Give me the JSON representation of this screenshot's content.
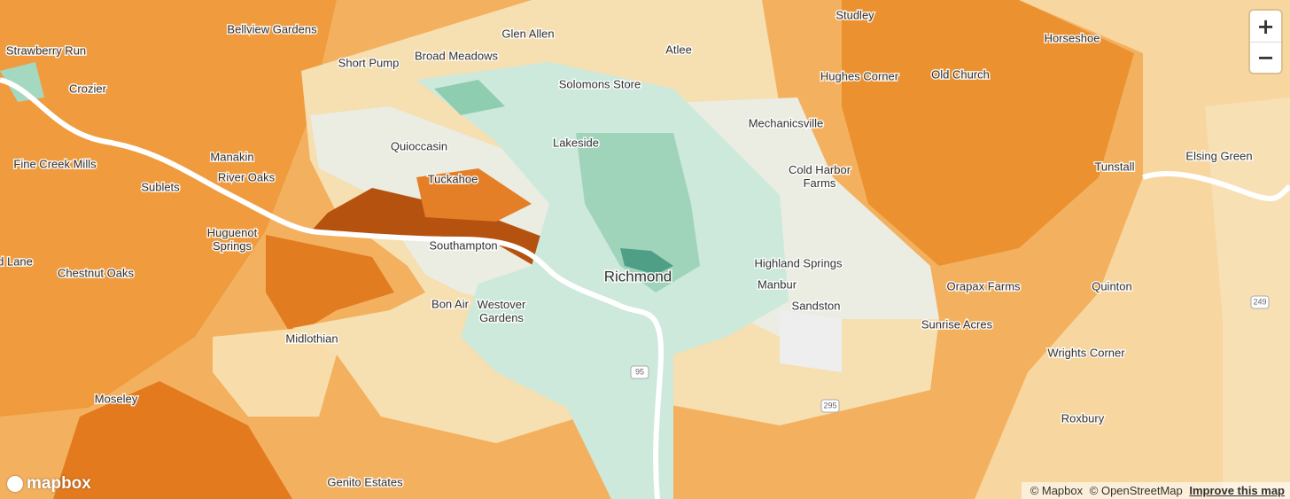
{
  "map": {
    "places": [
      "Studley",
      "Bellview Gardens",
      "Glen Allen",
      "Horseshoe",
      "Strawberry Run",
      "Broad Meadows",
      "Atlee",
      "Short Pump",
      "Hughes Corner",
      "Old Church",
      "Solomons Store",
      "Crozier",
      "Mechanicsville",
      "Lakeside",
      "Quioccasin",
      "Elsing Green",
      "Manakin",
      "Fine Creek Mills",
      "Tunstall",
      [
        "Cold Harbor",
        "Farms"
      ],
      "River Oaks",
      "Tuckahoe",
      "Sublets",
      [
        "Huguenot",
        "Springs"
      ],
      "Southampton",
      "d Lane",
      "Highland Springs",
      "Chestnut Oaks",
      "Manbur",
      "Orapax Farms",
      "Quinton",
      "Bon Air",
      [
        "Westover",
        "Gardens"
      ],
      "Sandston",
      "Sunrise Acres",
      "Midlothian",
      "Wrights Corner",
      "Moseley",
      "Roxbury",
      "Genito Estates"
    ],
    "city": "Richmond",
    "shields": [
      "95",
      "295",
      "249"
    ]
  },
  "controls": {
    "zoom_in": "+",
    "zoom_out": "−"
  },
  "logo": "mapbox",
  "attribution": [
    "© Mapbox",
    "© OpenStreetMap",
    "Improve this map"
  ]
}
